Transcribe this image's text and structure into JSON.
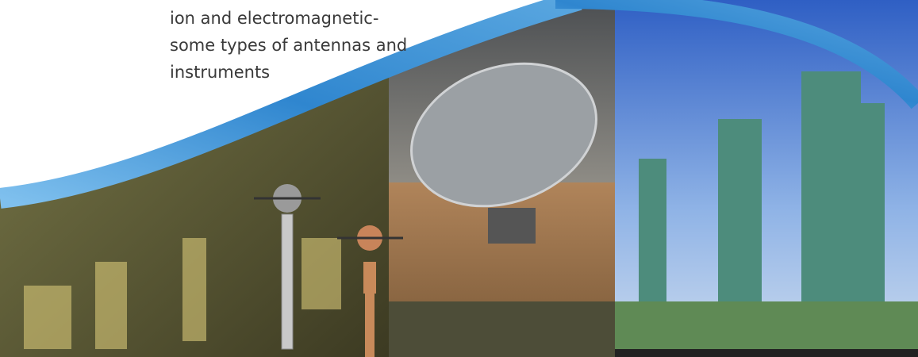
{
  "text": {
    "lines": [
      "ion and electromagnetic-",
      "some types of antennas and",
      "instruments"
    ]
  }
}
